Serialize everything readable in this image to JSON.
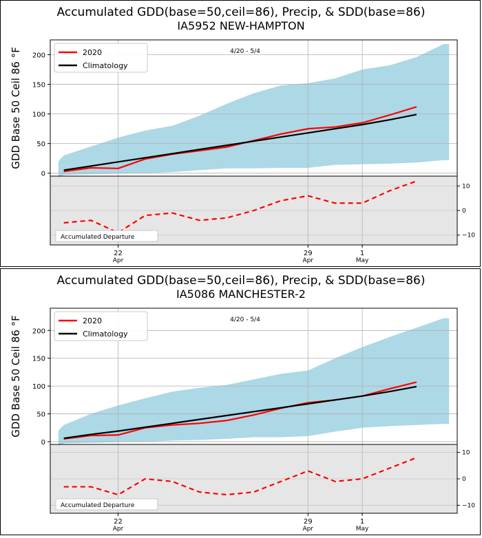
{
  "chart_data": [
    {
      "type": "line",
      "title": "Accumulated GDD(base=50,ceil=86), Precip, & SDD(base=86)",
      "subtitle": "IA5952 NEW-HAMPTON",
      "ylabel": "GDD Base 50 Ceil 86 °F",
      "period_label": "4/20 - 5/4",
      "departure_label": "Accumulated Departure",
      "ylim": [
        -5,
        225
      ],
      "y_ticks": [
        "0",
        "50",
        "100",
        "150",
        "200"
      ],
      "dep_ylim": [
        -14,
        14
      ],
      "dep_ticks": [
        "10",
        "0",
        "−10"
      ],
      "x_ticks": [
        {
          "day": 22,
          "label": "22",
          "sublabel": "Apr"
        },
        {
          "day": 29,
          "label": "29",
          "sublabel": "Apr"
        },
        {
          "day": 31,
          "label": "1",
          "sublabel": "May"
        }
      ],
      "x": [
        20,
        21,
        22,
        23,
        24,
        25,
        26,
        27,
        28,
        29,
        30,
        31,
        32,
        33
      ],
      "band_x": [
        19.8,
        20,
        21,
        22,
        23,
        24,
        25,
        26,
        27,
        28,
        29,
        30,
        31,
        32,
        33,
        34,
        34.2
      ],
      "band_upper": [
        20,
        30,
        45,
        60,
        72,
        80,
        97,
        117,
        135,
        148,
        152,
        160,
        175,
        182,
        196,
        218,
        218
      ],
      "band_lower": [
        -8,
        -3,
        -2,
        -1,
        0,
        2,
        5,
        8,
        8,
        9,
        9,
        14,
        15,
        16,
        18,
        22,
        22
      ],
      "series": [
        {
          "name": "2020",
          "color": "#ff0000",
          "values": [
            3,
            9,
            8,
            24,
            32,
            38,
            44,
            55,
            66,
            75,
            78,
            85,
            98,
            112
          ]
        },
        {
          "name": "Climatology",
          "color": "#000000",
          "values": [
            5,
            12,
            19,
            26,
            33,
            40,
            47,
            54,
            61,
            68,
            75,
            82,
            90,
            99
          ]
        }
      ],
      "departure": [
        -5,
        -4,
        -9,
        -2,
        -1,
        -4,
        -3,
        0,
        4,
        6,
        3,
        3,
        8,
        12
      ],
      "colors": {
        "band": "#add8e6",
        "departure_bg": "#e6e6e6",
        "departure_line": "#ff0000"
      }
    },
    {
      "type": "line",
      "title": "Accumulated GDD(base=50,ceil=86), Precip, & SDD(base=86)",
      "subtitle": "IA5086 MANCHESTER-2",
      "ylabel": "GDD Base 50 Ceil 86 °F",
      "period_label": "4/20 - 5/4",
      "departure_label": "Accumulated Departure",
      "ylim": [
        -5,
        240
      ],
      "y_ticks": [
        "0",
        "50",
        "100",
        "150",
        "200"
      ],
      "dep_ylim": [
        -13,
        13
      ],
      "dep_ticks": [
        "10",
        "0",
        "−10"
      ],
      "x_ticks": [
        {
          "day": 22,
          "label": "22",
          "sublabel": "Apr"
        },
        {
          "day": 29,
          "label": "29",
          "sublabel": "Apr"
        },
        {
          "day": 31,
          "label": "1",
          "sublabel": "May"
        }
      ],
      "x": [
        20,
        21,
        22,
        23,
        24,
        25,
        26,
        27,
        28,
        29,
        30,
        31,
        32,
        33
      ],
      "band_x": [
        19.8,
        20,
        21,
        22,
        23,
        24,
        25,
        26,
        27,
        28,
        29,
        30,
        31,
        32,
        33,
        34,
        34.2
      ],
      "band_upper": [
        20,
        30,
        50,
        65,
        78,
        90,
        97,
        102,
        112,
        122,
        128,
        150,
        170,
        188,
        205,
        222,
        222
      ],
      "band_lower": [
        -8,
        -3,
        -2,
        -1,
        0,
        2,
        3,
        5,
        8,
        8,
        10,
        18,
        25,
        28,
        30,
        32,
        32
      ],
      "series": [
        {
          "name": "2020",
          "color": "#ff0000",
          "values": [
            5,
            11,
            12,
            25,
            30,
            33,
            38,
            48,
            60,
            70,
            75,
            82,
            95,
            107
          ]
        },
        {
          "name": "Climatology",
          "color": "#000000",
          "values": [
            6,
            13,
            19,
            26,
            33,
            40,
            47,
            54,
            61,
            68,
            75,
            82,
            90,
            99
          ]
        }
      ],
      "departure": [
        -3,
        -3,
        -6,
        0,
        -1,
        -5,
        -6,
        -5,
        -1,
        3,
        -1,
        0,
        4,
        8
      ],
      "colors": {
        "band": "#add8e6",
        "departure_bg": "#e6e6e6",
        "departure_line": "#ff0000"
      }
    }
  ]
}
